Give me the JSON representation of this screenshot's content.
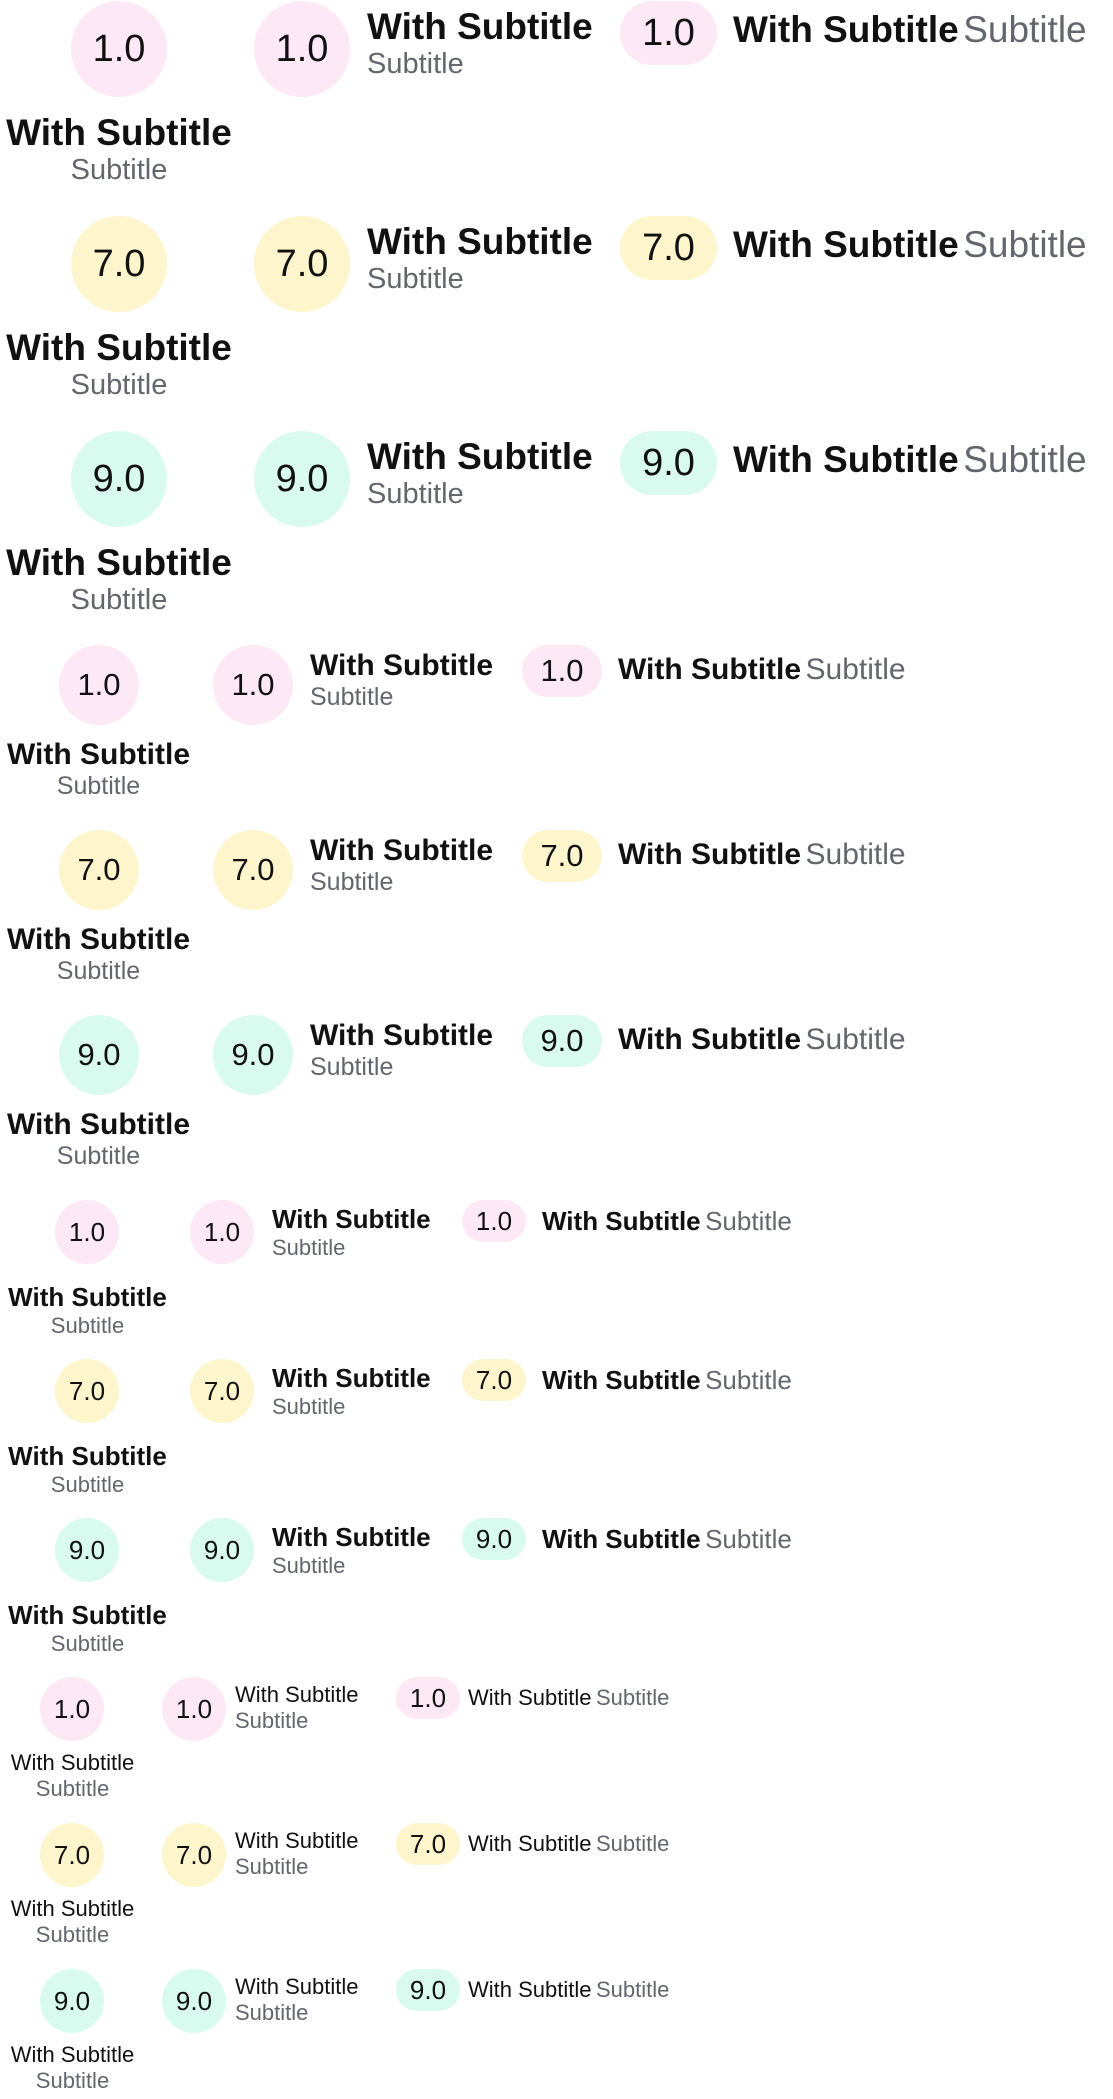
{
  "colors": {
    "pink": "#fde8f6",
    "yellow": "#fdf5cc",
    "mint": "#d9fbef",
    "text": "#111111",
    "subtitle": "#63666d"
  },
  "sections": [
    {
      "size": "xl",
      "rows": [
        {
          "value": "1.0",
          "color": "pink",
          "title": "With Subtitle",
          "subtitle": "Subtitle"
        },
        {
          "value": "7.0",
          "color": "yellow",
          "title": "With Subtitle",
          "subtitle": "Subtitle"
        },
        {
          "value": "9.0",
          "color": "mint",
          "title": "With Subtitle",
          "subtitle": "Subtitle"
        }
      ]
    },
    {
      "size": "l",
      "rows": [
        {
          "value": "1.0",
          "color": "pink",
          "title": "With Subtitle",
          "subtitle": "Subtitle"
        },
        {
          "value": "7.0",
          "color": "yellow",
          "title": "With Subtitle",
          "subtitle": "Subtitle"
        },
        {
          "value": "9.0",
          "color": "mint",
          "title": "With Subtitle",
          "subtitle": "Subtitle"
        }
      ]
    },
    {
      "size": "m",
      "rows": [
        {
          "value": "1.0",
          "color": "pink",
          "title": "With Subtitle",
          "subtitle": "Subtitle"
        },
        {
          "value": "7.0",
          "color": "yellow",
          "title": "With Subtitle",
          "subtitle": "Subtitle"
        },
        {
          "value": "9.0",
          "color": "mint",
          "title": "With Subtitle",
          "subtitle": "Subtitle"
        }
      ]
    },
    {
      "size": "s",
      "rows": [
        {
          "value": "1.0",
          "color": "pink",
          "title": "With Subtitle",
          "subtitle": "Subtitle"
        },
        {
          "value": "7.0",
          "color": "yellow",
          "title": "With Subtitle",
          "subtitle": "Subtitle"
        },
        {
          "value": "9.0",
          "color": "mint",
          "title": "With Subtitle",
          "subtitle": "Subtitle"
        }
      ]
    }
  ]
}
